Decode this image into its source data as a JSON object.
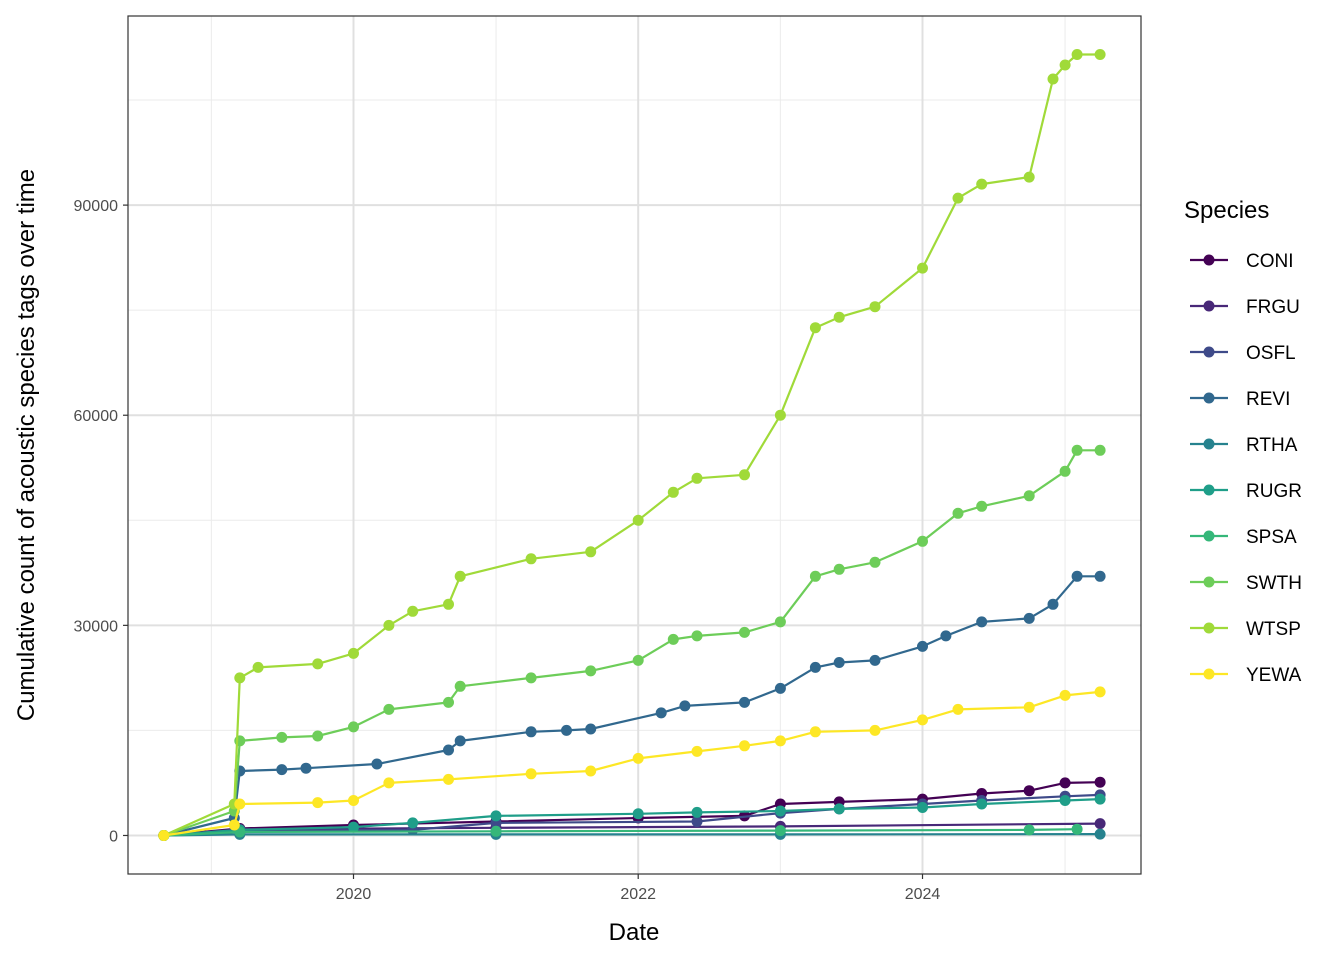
{
  "chart_data": {
    "type": "line",
    "xlabel": "Date",
    "ylabel": "Cumulative count of acoustic species tags over time",
    "x_ticks": [
      "2020",
      "2022",
      "2024"
    ],
    "y_ticks": [
      "0",
      "30000",
      "60000",
      "90000"
    ],
    "xlim": [
      "2018-06-01",
      "2025-07-15"
    ],
    "ylim": [
      -5500,
      117000
    ],
    "grid": true,
    "legend": {
      "title": "Species",
      "position": "right"
    },
    "series": [
      {
        "name": "CONI",
        "color": "#440154",
        "x": [
          "2018-09-01",
          "2019-03-15",
          "2020-01-01",
          "2021-01-01",
          "2022-01-01",
          "2022-10-01",
          "2023-01-01",
          "2023-06-01",
          "2024-01-01",
          "2024-06-01",
          "2024-10-01",
          "2025-01-01",
          "2025-04-01"
        ],
        "y": [
          0,
          1000,
          1500,
          2000,
          2500,
          2800,
          4500,
          4800,
          5200,
          6000,
          6400,
          7500,
          7600
        ]
      },
      {
        "name": "FRGU",
        "color": "#482878",
        "x": [
          "2018-09-01",
          "2019-03-15",
          "2021-01-01",
          "2023-01-01",
          "2025-04-01"
        ],
        "y": [
          0,
          900,
          1100,
          1300,
          1700
        ]
      },
      {
        "name": "OSFL",
        "color": "#3E4A89",
        "x": [
          "2018-09-01",
          "2019-03-15",
          "2020-06-01",
          "2021-01-01",
          "2022-06-01",
          "2023-01-01",
          "2023-06-01",
          "2024-01-01",
          "2024-06-01",
          "2025-01-01",
          "2025-04-01"
        ],
        "y": [
          0,
          700,
          800,
          1800,
          2000,
          3200,
          3800,
          4500,
          5000,
          5600,
          5800
        ]
      },
      {
        "name": "REVI",
        "color": "#31688E",
        "x": [
          "2018-09-01",
          "2019-03-01",
          "2019-03-15",
          "2019-07-01",
          "2019-09-01",
          "2020-03-01",
          "2020-09-01",
          "2020-10-01",
          "2021-04-01",
          "2021-07-01",
          "2021-09-01",
          "2022-03-01",
          "2022-05-01",
          "2022-10-01",
          "2023-01-01",
          "2023-04-01",
          "2023-06-01",
          "2023-09-01",
          "2024-01-01",
          "2024-03-01",
          "2024-06-01",
          "2024-10-01",
          "2024-12-01",
          "2025-02-01",
          "2025-04-01"
        ],
        "y": [
          0,
          2500,
          9200,
          9400,
          9600,
          10200,
          12200,
          13500,
          14800,
          15000,
          15200,
          17500,
          18500,
          19000,
          21000,
          24000,
          24700,
          25000,
          27000,
          28500,
          30500,
          31000,
          33000,
          37000,
          37000
        ]
      },
      {
        "name": "RTHA",
        "color": "#26828E",
        "x": [
          "2018-09-01",
          "2019-03-15",
          "2021-01-01",
          "2023-01-01",
          "2025-04-01"
        ],
        "y": [
          0,
          150,
          150,
          150,
          200
        ]
      },
      {
        "name": "RUGR",
        "color": "#1F9E89",
        "x": [
          "2018-09-01",
          "2019-03-15",
          "2020-01-01",
          "2020-06-01",
          "2021-01-01",
          "2022-01-01",
          "2022-06-01",
          "2023-01-01",
          "2023-06-01",
          "2024-01-01",
          "2024-06-01",
          "2025-01-01",
          "2025-04-01"
        ],
        "y": [
          0,
          800,
          1200,
          1800,
          2800,
          3100,
          3300,
          3500,
          3800,
          4000,
          4500,
          5000,
          5200
        ]
      },
      {
        "name": "SPSA",
        "color": "#35B779",
        "x": [
          "2018-09-01",
          "2019-03-15",
          "2021-01-01",
          "2023-01-01",
          "2024-10-01",
          "2025-02-01"
        ],
        "y": [
          0,
          500,
          600,
          700,
          800,
          900
        ]
      },
      {
        "name": "SWTH",
        "color": "#6DCD59",
        "x": [
          "2018-09-01",
          "2019-03-01",
          "2019-03-15",
          "2019-07-01",
          "2019-10-01",
          "2020-01-01",
          "2020-04-01",
          "2020-09-01",
          "2020-10-01",
          "2021-04-01",
          "2021-09-01",
          "2022-01-01",
          "2022-04-01",
          "2022-06-01",
          "2022-10-01",
          "2023-01-01",
          "2023-04-01",
          "2023-06-01",
          "2023-09-01",
          "2024-01-01",
          "2024-04-01",
          "2024-06-01",
          "2024-10-01",
          "2025-01-01",
          "2025-02-01",
          "2025-04-01"
        ],
        "y": [
          0,
          3500,
          13500,
          14000,
          14200,
          15500,
          18000,
          19000,
          21300,
          22500,
          23500,
          25000,
          28000,
          28500,
          29000,
          30500,
          37000,
          38000,
          39000,
          42000,
          46000,
          47000,
          48500,
          52000,
          55000,
          55000
        ]
      },
      {
        "name": "WTSP",
        "color": "#A0DA39",
        "x": [
          "2018-09-01",
          "2019-03-01",
          "2019-03-15",
          "2019-05-01",
          "2019-10-01",
          "2020-01-01",
          "2020-04-01",
          "2020-06-01",
          "2020-09-01",
          "2020-10-01",
          "2021-04-01",
          "2021-09-01",
          "2022-01-01",
          "2022-04-01",
          "2022-06-01",
          "2022-10-01",
          "2023-01-01",
          "2023-04-01",
          "2023-06-01",
          "2023-09-01",
          "2024-01-01",
          "2024-04-01",
          "2024-06-01",
          "2024-10-01",
          "2024-12-01",
          "2025-01-01",
          "2025-02-01",
          "2025-04-01"
        ],
        "y": [
          0,
          4500,
          22500,
          24000,
          24500,
          26000,
          30000,
          32000,
          33000,
          37000,
          39500,
          40500,
          45000,
          49000,
          51000,
          51500,
          60000,
          72500,
          74000,
          75500,
          81000,
          91000,
          93000,
          94000,
          108000,
          110000,
          111500,
          111500
        ]
      },
      {
        "name": "YEWA",
        "color": "#FDE725",
        "x": [
          "2018-09-01",
          "2019-03-01",
          "2019-03-15",
          "2019-10-01",
          "2020-01-01",
          "2020-04-01",
          "2020-09-01",
          "2021-04-01",
          "2021-09-01",
          "2022-01-01",
          "2022-06-01",
          "2022-10-01",
          "2023-01-01",
          "2023-04-01",
          "2023-09-01",
          "2024-01-01",
          "2024-04-01",
          "2024-10-01",
          "2025-01-01",
          "2025-04-01"
        ],
        "y": [
          0,
          1500,
          4500,
          4700,
          5000,
          7500,
          8000,
          8800,
          9200,
          11000,
          12000,
          12800,
          13500,
          14800,
          15000,
          16500,
          18000,
          18300,
          20000,
          20500
        ]
      }
    ]
  }
}
